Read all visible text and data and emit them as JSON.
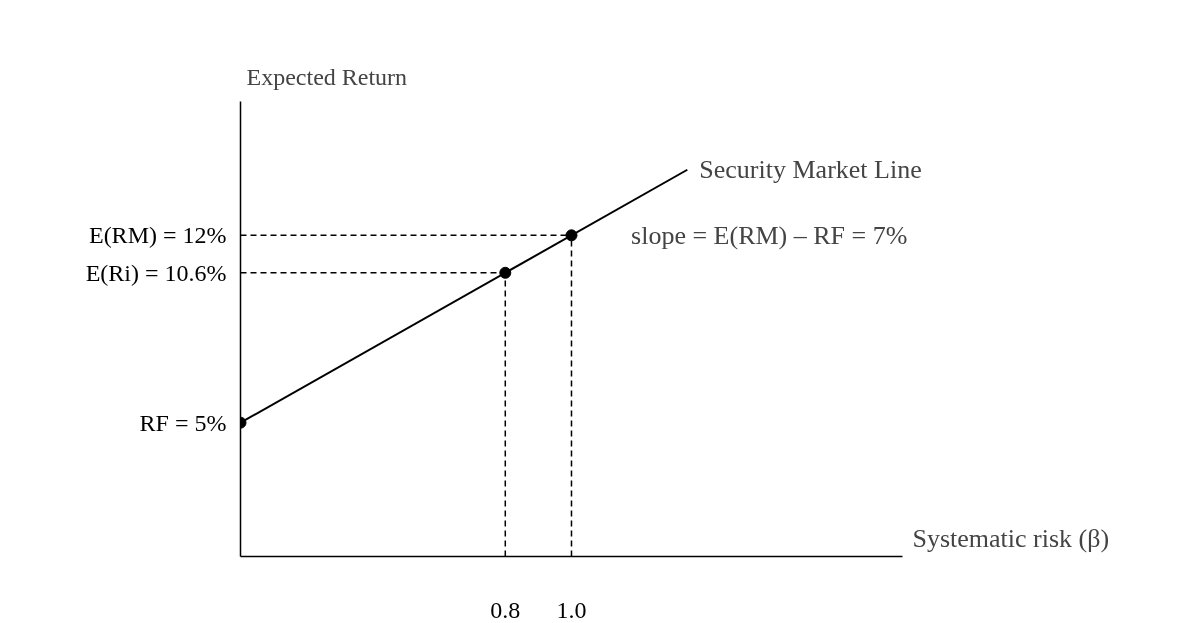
{
  "chart_data": {
    "type": "line",
    "xlabel": "Systematic risk (β)",
    "ylabel": "Expected Return",
    "xlim": [
      0,
      2.0
    ],
    "ylim": [
      0,
      17
    ],
    "xticks": [
      0.8,
      {
        "value": 1.0,
        "label": "1.0"
      }
    ],
    "yticks": [
      {
        "value": 5,
        "label": "RF = 5%"
      },
      {
        "value": 10.6,
        "label": "E(Ri) = 10.6%"
      },
      {
        "value": 12,
        "label": "E(RM) = 12%"
      }
    ],
    "grid": false,
    "series": [
      {
        "name": "Security Market Line",
        "color": "#000000",
        "line_style": "solid",
        "x": [
          0,
          1.35
        ],
        "values": [
          5,
          14.45
        ]
      },
      {
        "type": "scatter",
        "marker": "circle",
        "color": "#000000",
        "x": [
          0,
          0.8,
          1.0
        ],
        "values": [
          5,
          10.6,
          12
        ]
      }
    ],
    "ref_lines": [
      {
        "axis": "y",
        "value": 12,
        "line_style": "dashed",
        "color": "#000000"
      },
      {
        "axis": "y",
        "value": 10.6,
        "line_style": "dashed",
        "color": "#000000"
      },
      {
        "axis": "x",
        "value": 0.8,
        "line_style": "dashed",
        "color": "#000000"
      },
      {
        "axis": "x",
        "value": 1.0,
        "line_style": "dashed",
        "color": "#000000"
      }
    ],
    "annotations": [
      "slope = E(RM) – RF = 7%"
    ]
  }
}
